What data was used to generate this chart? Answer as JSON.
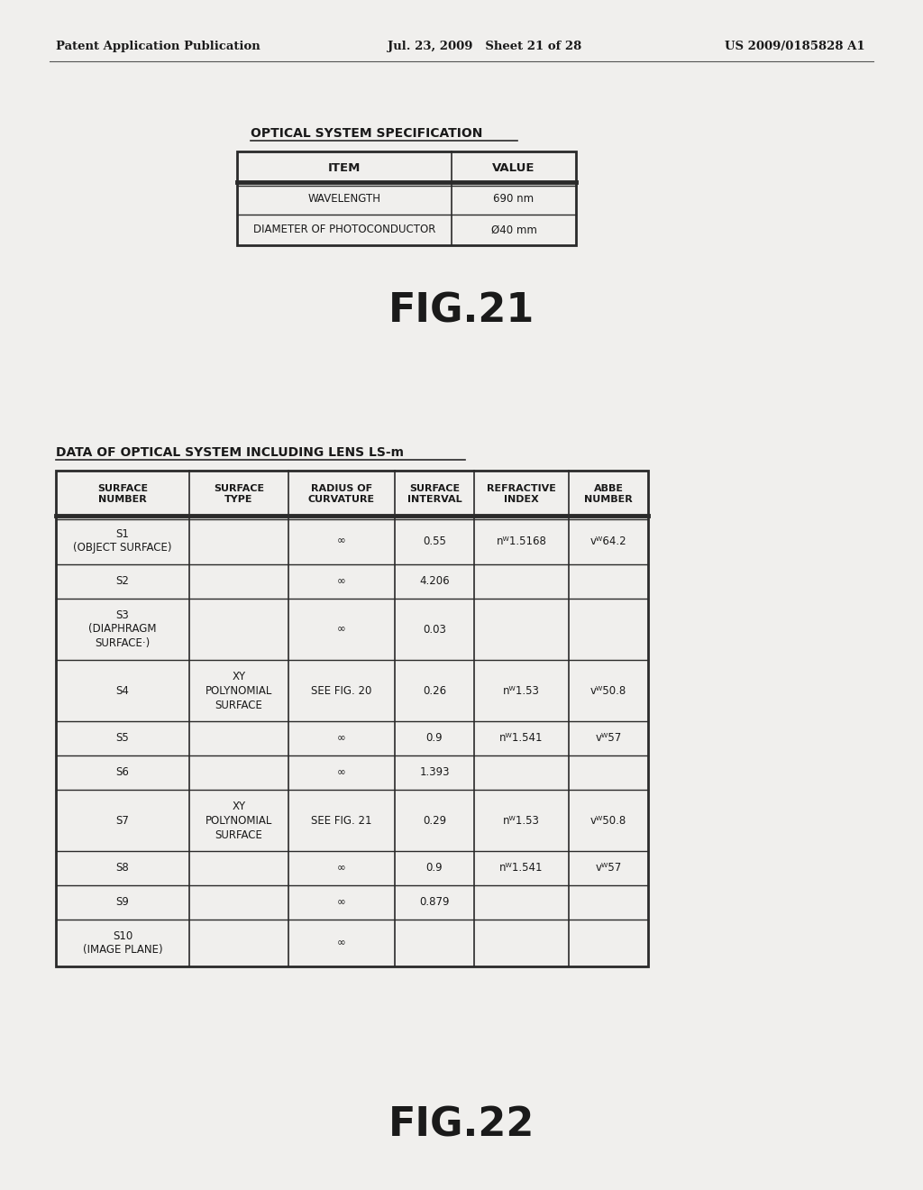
{
  "header_left": "Patent Application Publication",
  "header_mid": "Jul. 23, 2009   Sheet 21 of 28",
  "header_right": "US 2009/0185828 A1",
  "fig21_title": "OPTICAL SYSTEM SPECIFICATION",
  "table1_headers": [
    "ITEM",
    "VALUE"
  ],
  "table1_rows": [
    [
      "WAVELENGTH",
      "690 nm"
    ],
    [
      "DIAMETER OF PHOTOCONDUCTOR",
      "Ø40 mm"
    ]
  ],
  "fig21_label": "FIG.21",
  "fig22_title": "DATA OF OPTICAL SYSTEM INCLUDING LENS LS-m",
  "table2_headers": [
    "SURFACE\nNUMBER",
    "SURFACE\nTYPE",
    "RADIUS OF\nCURVATURE",
    "SURFACE\nINTERVAL",
    "REFRACTIVE\nINDEX",
    "ABBE\nNUMBER"
  ],
  "table2_col_widths": [
    148,
    110,
    118,
    88,
    105,
    88
  ],
  "table2_rows": [
    [
      "S1\n(OBJECT SURFACE)",
      "",
      "∞",
      "0.55",
      "nᵂ1.5168",
      "vᵂ64.2"
    ],
    [
      "S2",
      "",
      "∞",
      "4.206",
      "",
      ""
    ],
    [
      "S3\n(DIAPHRAGM\nSURFACE·)",
      "",
      "∞",
      "0.03",
      "",
      ""
    ],
    [
      "S4",
      "XY\nPOLYNOMIAL\nSURFACE",
      "SEE FIG. 20",
      "0.26",
      "nᵂ1.53",
      "vᵂ50.8"
    ],
    [
      "S5",
      "",
      "∞",
      "0.9",
      "nᵂ1.541",
      "vᵂ57"
    ],
    [
      "S6",
      "",
      "∞",
      "1.393",
      "",
      ""
    ],
    [
      "S7",
      "XY\nPOLYNOMIAL\nSURFACE",
      "SEE FIG. 21",
      "0.29",
      "nᵂ1.53",
      "vᵂ50.8"
    ],
    [
      "S8",
      "",
      "∞",
      "0.9",
      "nᵂ1.541",
      "vᵂ57"
    ],
    [
      "S9",
      "",
      "∞",
      "0.879",
      "",
      ""
    ],
    [
      "S10\n(IMAGE PLANE)",
      "",
      "∞",
      "",
      "",
      ""
    ]
  ],
  "table2_row_heights": [
    52,
    38,
    68,
    68,
    38,
    38,
    68,
    38,
    38,
    52
  ],
  "fig22_label": "FIG.22",
  "bg_color": "#e8e8e8",
  "paper_color": "#f0efed",
  "text_color": "#1a1a1a",
  "line_color": "#2a2a2a",
  "header_line_color": "#555555"
}
